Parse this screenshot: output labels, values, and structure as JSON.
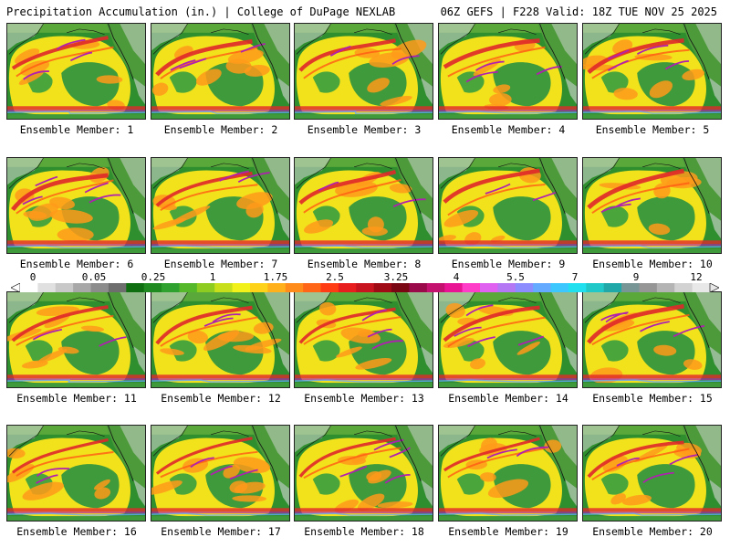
{
  "header": {
    "title": "Precipitation Accumulation (in.) | College of DuPage NEXLAB",
    "run_info": "06Z GEFS | F228 Valid: 18Z TUE NOV 25 2025"
  },
  "members": [
    {
      "label": "Ensemble Member: 1"
    },
    {
      "label": "Ensemble Member: 2"
    },
    {
      "label": "Ensemble Member: 3"
    },
    {
      "label": "Ensemble Member: 4"
    },
    {
      "label": "Ensemble Member: 5"
    },
    {
      "label": "Ensemble Member: 6"
    },
    {
      "label": "Ensemble Member: 7"
    },
    {
      "label": "Ensemble Member: 8"
    },
    {
      "label": "Ensemble Member: 9"
    },
    {
      "label": "Ensemble Member: 10"
    },
    {
      "label": "Ensemble Member: 11"
    },
    {
      "label": "Ensemble Member: 12"
    },
    {
      "label": "Ensemble Member: 13"
    },
    {
      "label": "Ensemble Member: 14"
    },
    {
      "label": "Ensemble Member: 15"
    },
    {
      "label": "Ensemble Member: 16"
    },
    {
      "label": "Ensemble Member: 17"
    },
    {
      "label": "Ensemble Member: 18"
    },
    {
      "label": "Ensemble Member: 19"
    },
    {
      "label": "Ensemble Member: 20"
    }
  ],
  "legend": {
    "values": [
      "0",
      "0.05",
      "0.25",
      "1",
      "1.75",
      "2.5",
      "3.25",
      "4",
      "5.5",
      "7",
      "9",
      "12"
    ],
    "colors": [
      "#ffffff",
      "#e0e0e0",
      "#c8c8c8",
      "#a8a8a8",
      "#8c8c8c",
      "#6e6e6e",
      "#0f6e0f",
      "#1f8a1f",
      "#2fa12f",
      "#55b82a",
      "#8fcc22",
      "#c8e01c",
      "#f2f21a",
      "#ffd21a",
      "#ffb01a",
      "#ff8c1a",
      "#ff6618",
      "#ff3c14",
      "#e81e1e",
      "#c8141e",
      "#a00a14",
      "#7a0614",
      "#9a0a4a",
      "#c4106e",
      "#e81494",
      "#ff3cc8",
      "#e060f0",
      "#b478f5",
      "#8c8cff",
      "#64aaff",
      "#3cc8ff",
      "#20e0f0",
      "#20c8c8",
      "#20a8a8",
      "#789696",
      "#969696",
      "#b4b4b4",
      "#d2d2d2",
      "#e8e8e8"
    ]
  },
  "palette": {
    "ocean": "#f2e21c",
    "land": "#2f8f2f",
    "snow": "#d8d8d8",
    "heavy": "#e0282a",
    "extreme": "#b020b0",
    "tropical": "#60a8ff"
  }
}
